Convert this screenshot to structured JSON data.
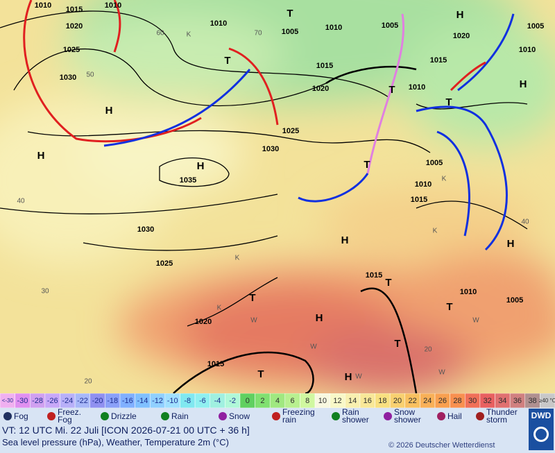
{
  "map": {
    "isobar_labels": [
      "1010",
      "1015",
      "1010",
      "1020",
      "1025",
      "1030",
      "1010",
      "1005",
      "1010",
      "1005",
      "1020",
      "1005",
      "1010",
      "1015",
      "1020",
      "1015",
      "1010",
      "1025",
      "1030",
      "1035",
      "1005",
      "1010",
      "1015",
      "1030",
      "1025",
      "1015",
      "1010",
      "1005",
      "1020",
      "1015"
    ],
    "centers": [
      "H",
      "H",
      "H",
      "T",
      "T",
      "H",
      "T",
      "T",
      "H",
      "T",
      "H",
      "H",
      "T",
      "H",
      "T",
      "T",
      "T",
      "T",
      "H"
    ],
    "minor_labels": [
      "K",
      "K",
      "K",
      "K",
      "K",
      "W",
      "W",
      "W",
      "W",
      "W",
      "60",
      "50",
      "70",
      "40",
      "30",
      "20",
      "40",
      "20"
    ]
  },
  "scale": {
    "labels": [
      "<-30",
      "-30",
      "-28",
      "-26",
      "-24",
      "-22",
      "-20",
      "-18",
      "-16",
      "-14",
      "-12",
      "-10",
      "-8",
      "-6",
      "-4",
      "-2",
      "0",
      "2",
      "4",
      "6",
      "8",
      "10",
      "12",
      "14",
      "16",
      "18",
      "20",
      "22",
      "24",
      "26",
      "28",
      "30",
      "32",
      "34",
      "36",
      "38",
      "≥40 °C"
    ],
    "colors": [
      "#f0b0f0",
      "#e090f0",
      "#d0a0f0",
      "#c8a8f8",
      "#b8b0f8",
      "#a8b8f8",
      "#9090f0",
      "#8aa0f8",
      "#80b0ff",
      "#80c0ff",
      "#90d0ff",
      "#a0e0ff",
      "#80e8f0",
      "#90f0f0",
      "#a0f0e0",
      "#b0f8d8",
      "#60d060",
      "#80e070",
      "#a0e880",
      "#b8f090",
      "#d0f8a0",
      "#f8f8e0",
      "#f8f8c8",
      "#f8f0b0",
      "#f8e898",
      "#f8e080",
      "#f8d070",
      "#f8c060",
      "#f8b058",
      "#f8a050",
      "#f89050",
      "#f07058",
      "#e86060",
      "#e07070",
      "#d08080",
      "#b09090",
      "#c8c8c8"
    ]
  },
  "legend": {
    "items": [
      "Fog",
      "Freez. Fog",
      "Drizzle",
      "Rain",
      "Snow",
      "Freezing rain",
      "Rain shower",
      "Snow shower",
      "Hail",
      "Thunder storm"
    ]
  },
  "footer": {
    "valid_time": "VT: 12 UTC Mi.  22 Juli [ICON 2026-07-21  00 UTC + 36 h]",
    "description": "Sea level pressure (hPa), Weather, Temperature 2m (°C)",
    "copyright": "© 2026 Deutscher Wetterdienst",
    "logo": "DWD"
  }
}
